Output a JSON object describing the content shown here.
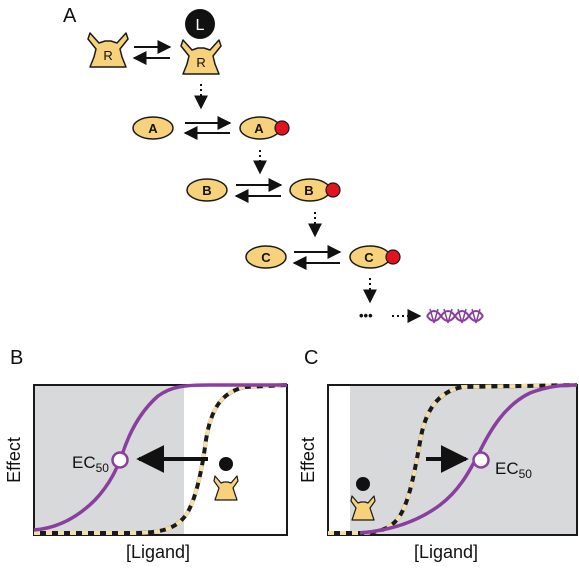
{
  "panels": {
    "A": {
      "label": "A",
      "receptor": {
        "label": "R"
      },
      "ligand": {
        "label": "L"
      },
      "kinases": [
        "A",
        "B",
        "C"
      ],
      "ellipsis": "•••",
      "colors": {
        "fill": "#f7d27b",
        "stroke": "#1a1a1a",
        "phospho": "#e2131e",
        "dna": "#8a3fa0"
      }
    },
    "B": {
      "label": "B",
      "ylabel": "Effect",
      "xlabel": "[Ligand]",
      "annotation_main": "EC",
      "annotation_sub": "50",
      "colors": {
        "curve": "#8a3fa0",
        "shade": "#d8d9db",
        "dash_dark": "#1a1a1a",
        "dash_light": "#f5dfa8"
      }
    },
    "C": {
      "label": "C",
      "ylabel": "Effect",
      "xlabel": "[Ligand]",
      "annotation_main": "EC",
      "annotation_sub": "50",
      "colors": {
        "curve": "#8a3fa0",
        "shade": "#d8d9db",
        "dash_dark": "#1a1a1a",
        "dash_light": "#f5dfa8"
      }
    }
  }
}
